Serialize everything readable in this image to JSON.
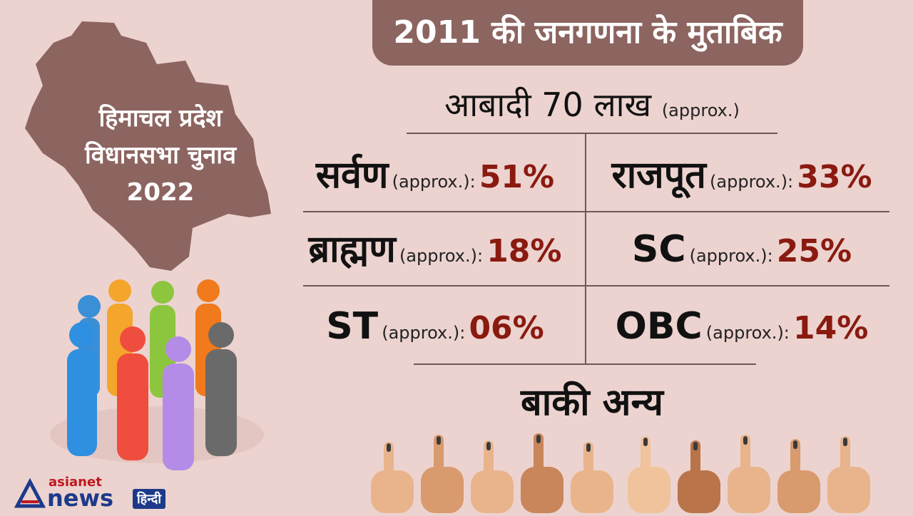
{
  "map_label": {
    "line1": "हिमाचल प्रदेश",
    "line2": "विधानसभा चुनाव",
    "line3": "2022"
  },
  "title": "2011 की जनगणना के मुताबिक",
  "population": {
    "label": "आबादी 70 लाख",
    "approx": "(approx.)"
  },
  "groups": [
    {
      "name": "सर्वण",
      "approx": "(approx.):",
      "pct": "51%"
    },
    {
      "name": "राजपूत",
      "approx": "(approx.):",
      "pct": "33%"
    },
    {
      "name": "ब्राह्मण",
      "approx": "(approx.):",
      "pct": "18%"
    },
    {
      "name": "SC",
      "approx": "(approx.):",
      "pct": "25%"
    },
    {
      "name": "ST",
      "approx": "(approx.):",
      "pct": "06%"
    },
    {
      "name": "OBC",
      "approx": "(approx.):",
      "pct": "14%"
    }
  ],
  "rest_label": "बाकी अन्य",
  "logo": {
    "brand1": "asianet",
    "brand2": "news",
    "brand3": "हिन्दी"
  },
  "colors": {
    "accent": "#8c6460",
    "pct": "#8a1a10",
    "background": "#ecd3cf"
  }
}
